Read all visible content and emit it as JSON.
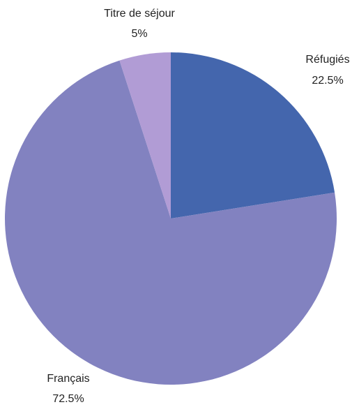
{
  "chart_data": {
    "type": "pie",
    "categories": [
      "Réfugiés",
      "Français",
      "Titre de séjour"
    ],
    "values": [
      22.5,
      72.5,
      5
    ],
    "value_labels": [
      "22.5%",
      "72.5%",
      "5%"
    ],
    "colors": [
      "#4466ad",
      "#8282c0",
      "#b19cd5"
    ]
  }
}
